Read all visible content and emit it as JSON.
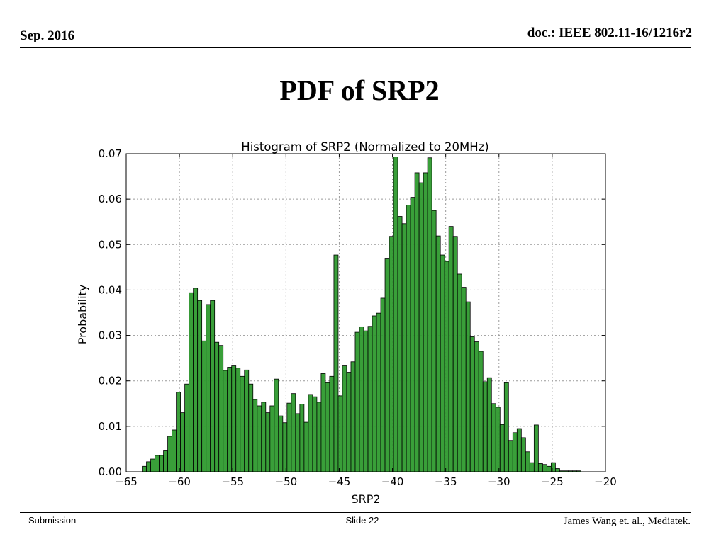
{
  "slide": {
    "date": "Sep. 2016",
    "doc_id": "doc.: IEEE 802.11-16/1216r2",
    "title": "PDF of SRP2",
    "footer_left": "Submission",
    "footer_center": "Slide 22",
    "footer_right": "James Wang et. al., Mediatek."
  },
  "chart_data": {
    "type": "bar",
    "title": "Histogram of SRP2 (Normalized to 20MHz)",
    "xlabel": "SRP2",
    "ylabel": "Probability",
    "xlim": [
      -65,
      -20
    ],
    "ylim": [
      0,
      0.07
    ],
    "xticks": [
      -65,
      -60,
      -55,
      -50,
      -45,
      -40,
      -35,
      -30,
      -25,
      -20
    ],
    "xtick_labels": [
      "−65",
      "−60",
      "−55",
      "−50",
      "−45",
      "−40",
      "−35",
      "−30",
      "−25",
      "−20"
    ],
    "yticks": [
      0.0,
      0.01,
      0.02,
      0.03,
      0.04,
      0.05,
      0.06,
      0.07
    ],
    "ytick_labels": [
      "0.00",
      "0.01",
      "0.02",
      "0.03",
      "0.04",
      "0.05",
      "0.06",
      "0.07"
    ],
    "grid": true,
    "bar_color": "#2e9a2e",
    "bin_start": -63.5,
    "bin_width": 0.4,
    "values": [
      0.0012,
      0.0022,
      0.0028,
      0.0036,
      0.0036,
      0.0046,
      0.0078,
      0.0092,
      0.0175,
      0.013,
      0.0193,
      0.0394,
      0.0404,
      0.0377,
      0.0288,
      0.0368,
      0.0377,
      0.0285,
      0.0278,
      0.0223,
      0.023,
      0.0233,
      0.0228,
      0.021,
      0.0224,
      0.0193,
      0.0159,
      0.0145,
      0.0153,
      0.013,
      0.0145,
      0.0204,
      0.0123,
      0.0108,
      0.0151,
      0.0172,
      0.0128,
      0.0149,
      0.0109,
      0.017,
      0.0165,
      0.0153,
      0.0216,
      0.0196,
      0.021,
      0.0477,
      0.0167,
      0.0233,
      0.0219,
      0.0242,
      0.0307,
      0.0319,
      0.031,
      0.032,
      0.0343,
      0.0349,
      0.0382,
      0.047,
      0.0518,
      0.0693,
      0.0562,
      0.0546,
      0.0587,
      0.0604,
      0.0658,
      0.0636,
      0.0658,
      0.0691,
      0.0575,
      0.0519,
      0.0477,
      0.0463,
      0.054,
      0.0518,
      0.0435,
      0.0406,
      0.0374,
      0.0297,
      0.0286,
      0.0265,
      0.0198,
      0.0207,
      0.015,
      0.0142,
      0.0104,
      0.0196,
      0.0069,
      0.0086,
      0.0095,
      0.0075,
      0.0044,
      0.002,
      0.0103,
      0.0018,
      0.0016,
      0.0012,
      0.002,
      0.0007,
      0.0002,
      0.0002,
      0.0002,
      0.0002,
      0.0002
    ]
  }
}
